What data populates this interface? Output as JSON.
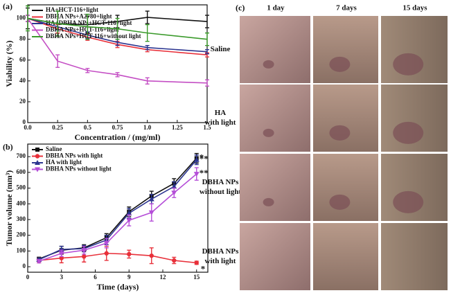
{
  "chart_data": [
    {
      "type": "line",
      "panel_label": "(a)",
      "x_label": "Concentration / (mg/ml)",
      "y_label": "Viability (%)",
      "x": [
        0,
        0.25,
        0.5,
        0.75,
        1.0,
        1.5
      ],
      "xlim": [
        0,
        1.5
      ],
      "ylim": [
        0,
        113
      ],
      "xticks": [
        {
          "value": 0,
          "label": "0.0"
        },
        0.25,
        0.5,
        0.75,
        {
          "value": 1,
          "label": "1.0"
        },
        1.25,
        1.5
      ],
      "yticks": [
        0,
        20,
        40,
        60,
        80,
        100
      ],
      "legend": "upper-left",
      "series": [
        {
          "name": "HA+HCT-116+light",
          "color": "#111111",
          "marker": "none",
          "values": [
            100,
            95,
            94,
            97,
            101,
            97
          ],
          "errors": [
            10,
            12,
            8,
            6,
            6,
            6
          ]
        },
        {
          "name": "DBHA NPs+A2780+light",
          "color": "#e8303a",
          "marker": "none",
          "values": [
            100,
            90,
            82,
            75,
            70,
            65
          ],
          "errors": [
            3,
            4,
            3,
            3,
            2,
            2
          ]
        },
        {
          "name": "HA+DBHA NPs+HCT-116+light",
          "color": "#2c3590",
          "marker": "none",
          "values": [
            100,
            92,
            84,
            77,
            72,
            68
          ],
          "errors": [
            3,
            3,
            3,
            3,
            2,
            2
          ]
        },
        {
          "name": "DBHA NPs+HCT-116+light",
          "color": "#c44ec4",
          "marker": "none",
          "values": [
            100,
            59,
            50,
            46,
            40,
            38
          ],
          "errors": [
            3,
            6,
            2,
            2,
            3,
            3
          ]
        },
        {
          "name": "DBHA NPs+HCT-116+without light",
          "color": "#3a9a2a",
          "marker": "none",
          "values": [
            100,
            95,
            92,
            90,
            86,
            80
          ],
          "errors": [
            12,
            12,
            12,
            10,
            8,
            6
          ]
        }
      ]
    },
    {
      "type": "line",
      "panel_label": "(b)",
      "x_label": "Time (days)",
      "y_label": "Tumor volume (mm³)",
      "x": [
        1,
        3,
        5,
        7,
        9,
        11,
        13,
        15
      ],
      "xlim": [
        0,
        16
      ],
      "ylim": [
        -35,
        780
      ],
      "xticks": [
        0,
        3,
        6,
        9,
        12,
        15
      ],
      "yticks": [
        0,
        100,
        200,
        300,
        400,
        500,
        600,
        700
      ],
      "legend": "upper-left",
      "series": [
        {
          "name": "Saline",
          "color": "#111111",
          "marker": "square",
          "values": [
            50,
            105,
            120,
            185,
            350,
            450,
            530,
            690
          ],
          "errors": [
            10,
            25,
            20,
            25,
            30,
            30,
            30,
            30
          ]
        },
        {
          "name": "DBHA NPs with light",
          "color": "#e8303a",
          "marker": "circle",
          "values": [
            40,
            55,
            65,
            85,
            80,
            70,
            40,
            25
          ],
          "errors": [
            15,
            30,
            35,
            45,
            25,
            50,
            20,
            10
          ]
        },
        {
          "name": "HA with light",
          "color": "#2c3590",
          "marker": "triangle",
          "values": [
            45,
            110,
            115,
            170,
            340,
            430,
            510,
            680
          ],
          "errors": [
            10,
            20,
            20,
            30,
            30,
            30,
            30,
            30
          ]
        },
        {
          "name": "DBHA NPs without light",
          "color": "#b54ed8",
          "marker": "triangle-down",
          "values": [
            35,
            85,
            105,
            150,
            295,
            345,
            470,
            590
          ],
          "errors": [
            10,
            20,
            25,
            30,
            35,
            55,
            30,
            40
          ]
        }
      ],
      "annotations": [
        "*",
        "*",
        "**",
        "**"
      ]
    }
  ],
  "photo_panel": {
    "panel_label": "(c)",
    "columns": [
      "1 day",
      "7 days",
      "15 days"
    ],
    "rows": [
      [
        "Saline"
      ],
      [
        "HA",
        "with light"
      ],
      [
        "DBHA NPs",
        "without light"
      ],
      [
        "DBHA NPs",
        "with light"
      ]
    ]
  }
}
